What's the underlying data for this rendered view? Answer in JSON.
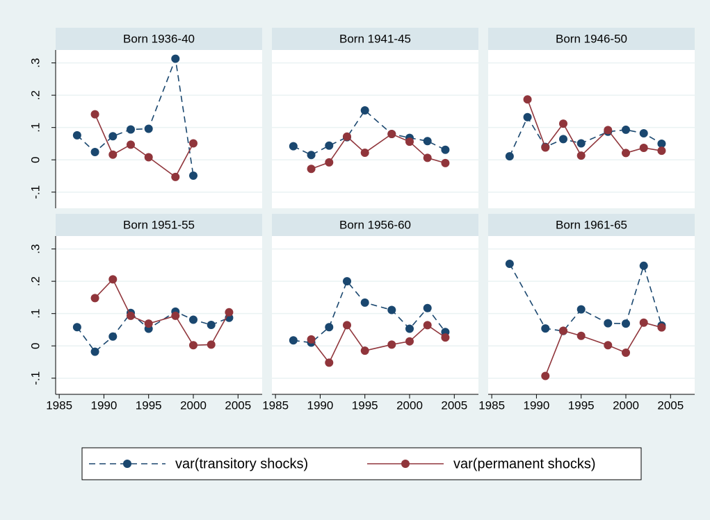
{
  "chart_data": {
    "type": "line",
    "series": [
      {
        "name": "var(transitory shocks)",
        "color": "#1a476f",
        "style": "dashed"
      },
      {
        "name": "var(permanent shocks)",
        "color": "#90353b",
        "style": "solid"
      }
    ],
    "xlim": [
      1984.6,
      2007.7
    ],
    "xticks": [
      1985,
      1990,
      1995,
      2000,
      2005
    ],
    "ylim": [
      -0.15,
      0.34
    ],
    "yticks": [
      {
        "value": -0.1,
        "label": "-.1"
      },
      {
        "value": 0,
        "label": "0"
      },
      {
        "value": 0.1,
        "label": ".1"
      },
      {
        "value": 0.2,
        "label": ".2"
      },
      {
        "value": 0.3,
        "label": ".3"
      }
    ],
    "grid": true,
    "legend": "bottom",
    "panels": [
      {
        "title": "Born 1936-40",
        "series": [
          {
            "x": [
              1987,
              1989,
              1991,
              1993,
              1995,
              1998,
              2000
            ],
            "values": [
              0.076,
              0.024,
              0.073,
              0.094,
              0.096,
              0.313,
              -0.049
            ]
          },
          {
            "x": [
              1989,
              1991,
              1993,
              1995,
              1998,
              2000
            ],
            "values": [
              0.141,
              0.016,
              0.047,
              0.008,
              -0.053,
              0.051
            ]
          }
        ]
      },
      {
        "title": "Born 1941-45",
        "series": [
          {
            "x": [
              1987,
              1989,
              1991,
              1993,
              1995,
              1998,
              2000,
              2002,
              2004
            ],
            "values": [
              0.042,
              0.015,
              0.044,
              0.07,
              0.153,
              0.08,
              0.068,
              0.058,
              0.031
            ]
          },
          {
            "x": [
              1989,
              1991,
              1993,
              1995,
              1998,
              2000,
              2002,
              2004
            ],
            "values": [
              -0.028,
              -0.008,
              0.072,
              0.022,
              0.08,
              0.056,
              0.006,
              -0.01
            ]
          }
        ]
      },
      {
        "title": "Born 1946-50",
        "series": [
          {
            "x": [
              1987,
              1989,
              1991,
              1993,
              1995,
              1998,
              2000,
              2002,
              2004
            ],
            "values": [
              0.011,
              0.132,
              0.04,
              0.064,
              0.051,
              0.087,
              0.093,
              0.082,
              0.05
            ]
          },
          {
            "x": [
              1989,
              1991,
              1993,
              1995,
              1998,
              2000,
              2002,
              2004
            ],
            "values": [
              0.187,
              0.038,
              0.112,
              0.013,
              0.092,
              0.021,
              0.037,
              0.028
            ]
          }
        ]
      },
      {
        "title": "Born 1951-55",
        "series": [
          {
            "x": [
              1987,
              1989,
              1991,
              1993,
              1995,
              1998,
              2000,
              2002,
              2004
            ],
            "values": [
              0.058,
              -0.018,
              0.029,
              0.102,
              0.053,
              0.106,
              0.081,
              0.065,
              0.087
            ]
          },
          {
            "x": [
              1989,
              1991,
              1993,
              1995,
              1998,
              2000,
              2002,
              2004
            ],
            "values": [
              0.148,
              0.206,
              0.093,
              0.069,
              0.093,
              0.002,
              0.004,
              0.104
            ]
          }
        ]
      },
      {
        "title": "Born 1956-60",
        "series": [
          {
            "x": [
              1987,
              1989,
              1991,
              1993,
              1995,
              1998,
              2000,
              2002,
              2004
            ],
            "values": [
              0.017,
              0.01,
              0.058,
              0.2,
              0.134,
              0.111,
              0.053,
              0.117,
              0.043
            ]
          },
          {
            "x": [
              1989,
              1991,
              1993,
              1995,
              1998,
              2000,
              2002,
              2004
            ],
            "values": [
              0.02,
              -0.052,
              0.064,
              -0.015,
              0.004,
              0.014,
              0.064,
              0.026
            ]
          }
        ]
      },
      {
        "title": "Born 1961-65",
        "series": [
          {
            "x": [
              1987,
              1991,
              1993,
              1995,
              1998,
              2000,
              2002,
              2004
            ],
            "values": [
              0.254,
              0.054,
              0.046,
              0.113,
              0.07,
              0.069,
              0.248,
              0.063
            ]
          },
          {
            "x": [
              1991,
              1993,
              1995,
              1998,
              2000,
              2002,
              2004
            ],
            "values": [
              -0.093,
              0.047,
              0.031,
              0.002,
              -0.021,
              0.072,
              0.057
            ]
          }
        ]
      }
    ]
  }
}
